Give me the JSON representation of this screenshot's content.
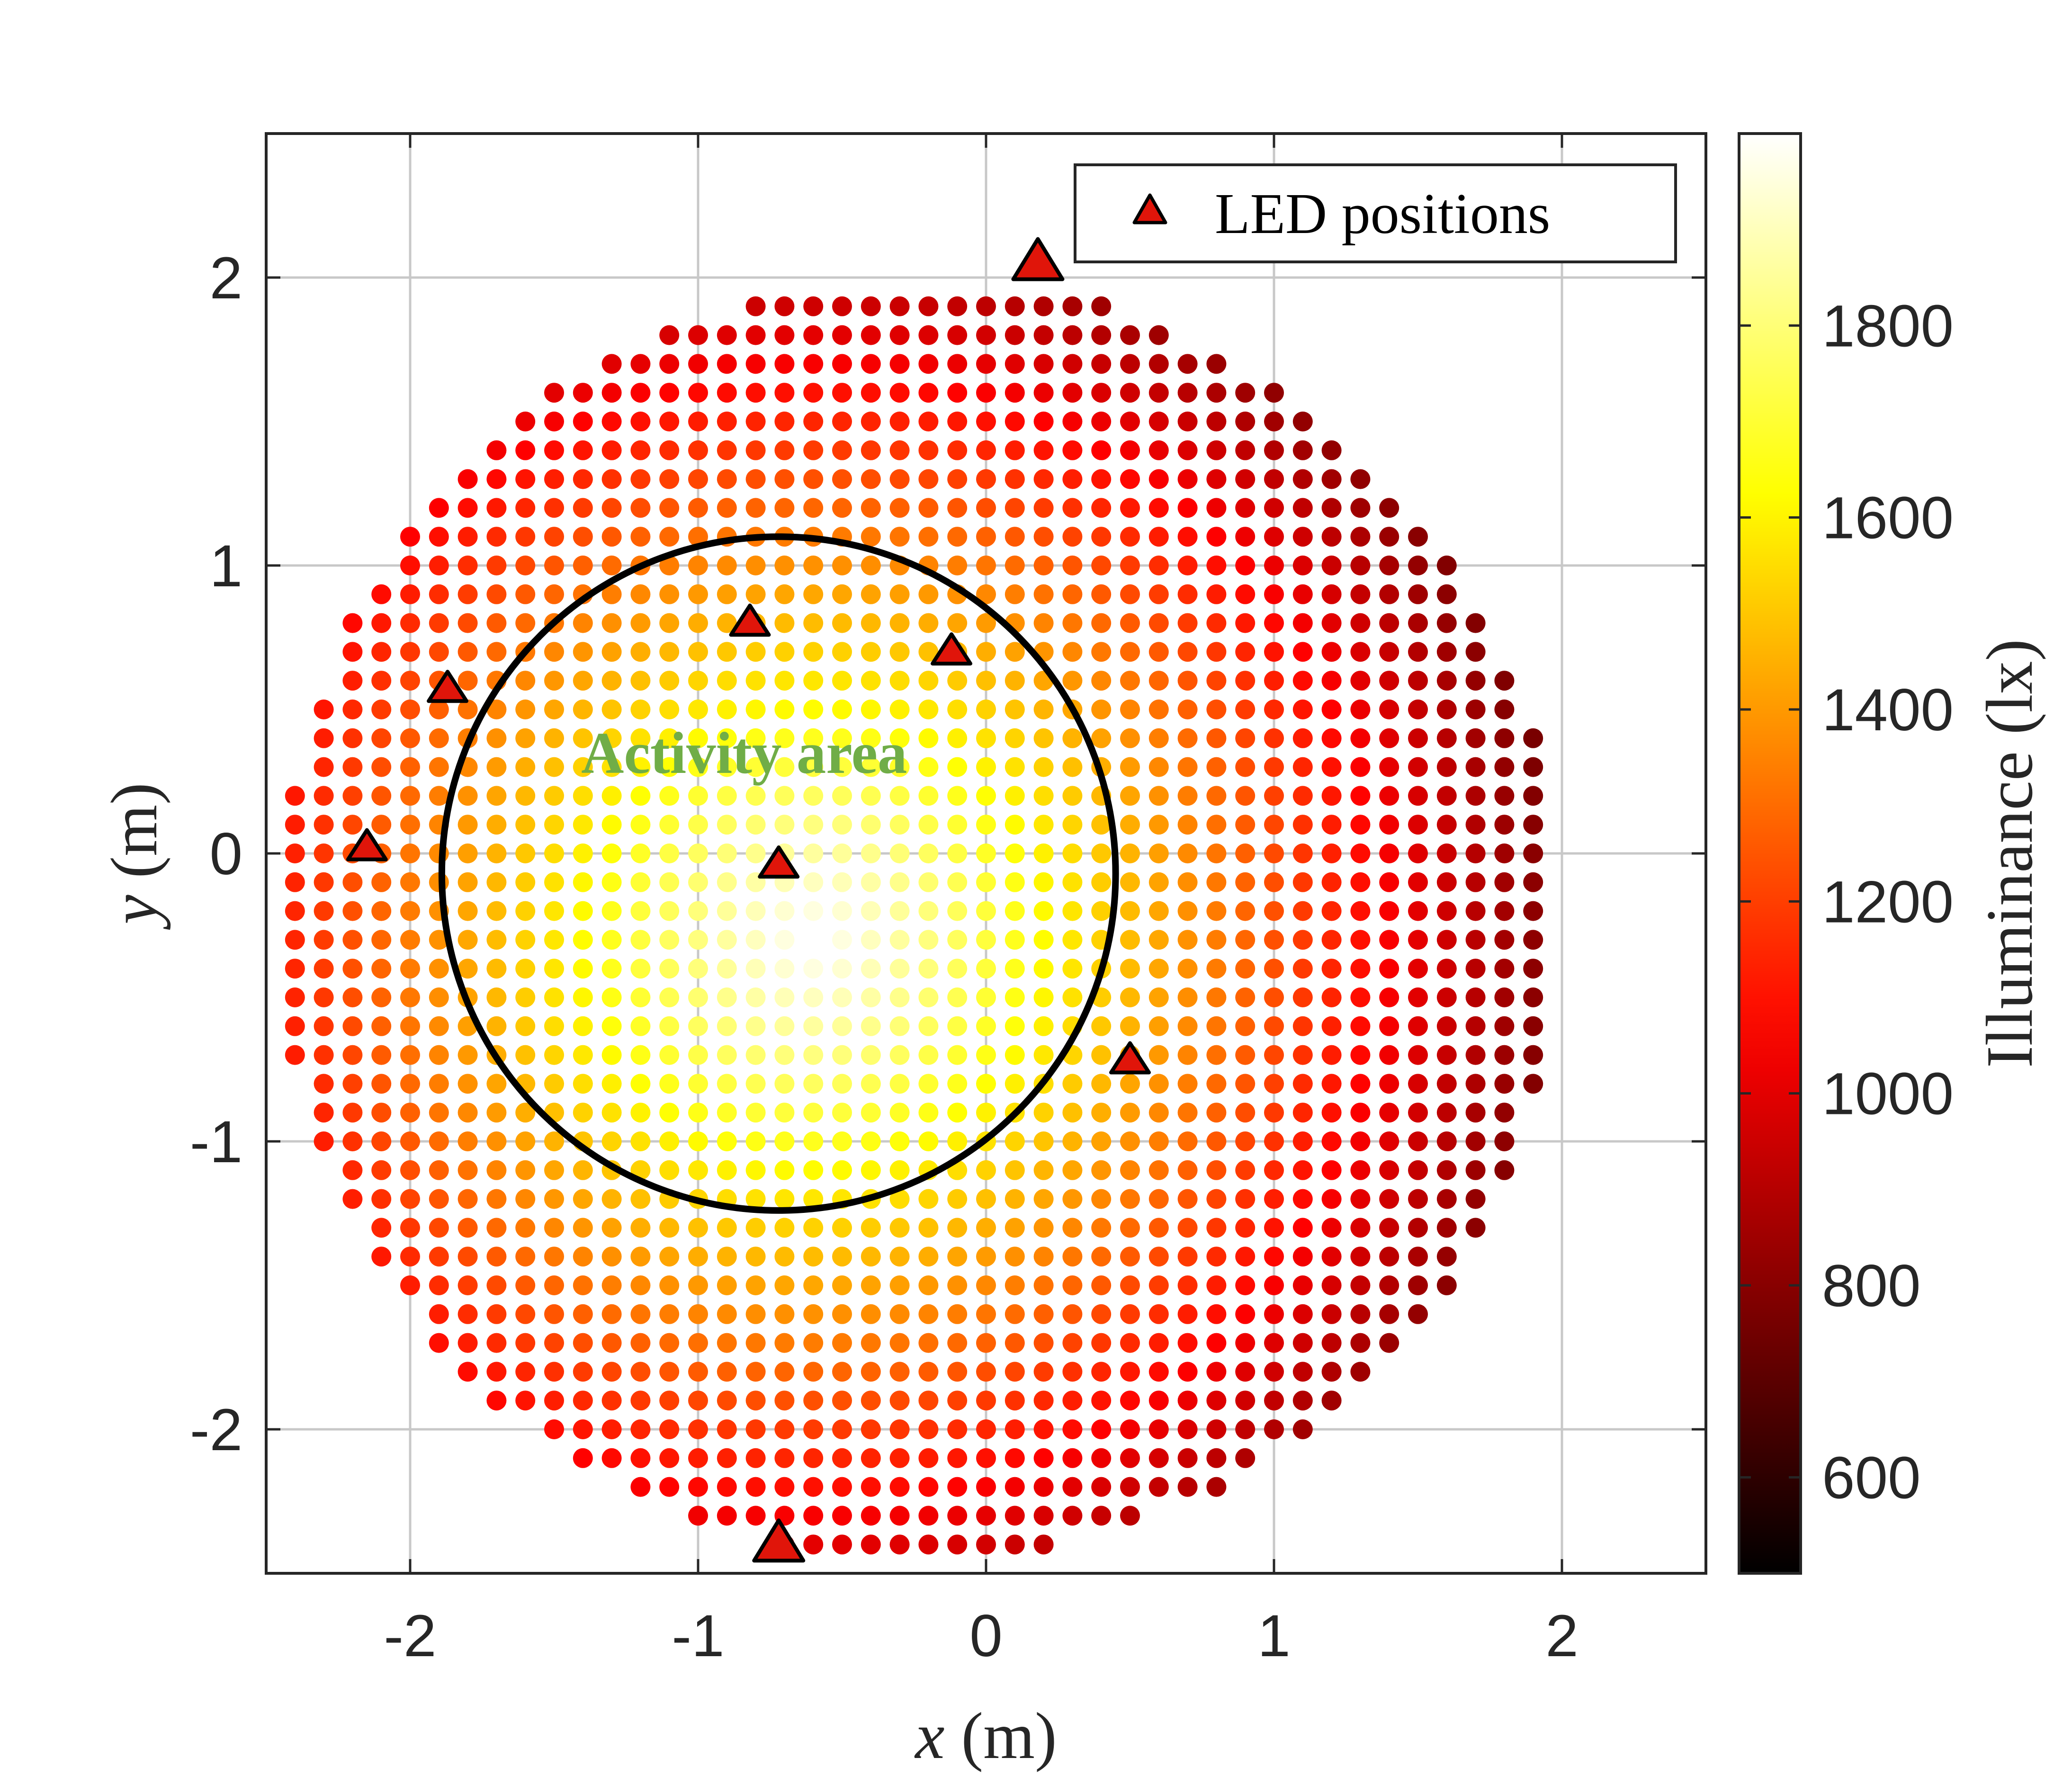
{
  "chart_data": {
    "type": "scatter",
    "title": "",
    "xlabel_var": "x",
    "xlabel_unit": " (m)",
    "ylabel_var": "y",
    "ylabel_unit": " (m)",
    "colorbar_label": "Illuminance (lx)",
    "xlim": [
      -2.5,
      2.5
    ],
    "ylim": [
      -2.5,
      2.5
    ],
    "x_ticks": [
      -2,
      -1,
      0,
      1,
      2
    ],
    "x_tick_labels": [
      "-2",
      "-1",
      "0",
      "1",
      "2"
    ],
    "y_ticks": [
      -2,
      -1,
      0,
      1,
      2
    ],
    "y_tick_labels": [
      "-2",
      "-1",
      "0",
      "1",
      "2"
    ],
    "grid": true,
    "colorbar": {
      "range": [
        500,
        2000
      ],
      "ticks": [
        600,
        800,
        1000,
        1200,
        1400,
        1600,
        1800
      ],
      "tick_labels": [
        "600",
        "800",
        "1000",
        "1200",
        "1400",
        "1600",
        "1800"
      ],
      "colormap": "hot"
    },
    "measurement_grid": {
      "spacing_m": 0.1,
      "boundary_center": [
        -0.23,
        -0.23
      ],
      "boundary_radius_m": 2.23
    },
    "illuminance_field": {
      "peak_position": [
        -0.6,
        -0.3
      ],
      "peak_lx": 2000,
      "falloff_lx_per_m": 475,
      "min_lx": 500
    },
    "led_positions": {
      "x": [
        0.18,
        -0.72,
        -0.82,
        -0.12,
        -2.15,
        -1.87,
        0.5,
        -0.72
      ],
      "y": [
        2.05,
        -2.4,
        0.8,
        0.7,
        0.02,
        0.57,
        -0.72,
        -0.04
      ],
      "sizes": [
        "large",
        "large",
        "small",
        "small",
        "small",
        "small",
        "small",
        "small"
      ]
    },
    "activity_area": {
      "label": "Activity area",
      "center": [
        -0.72,
        -0.07
      ],
      "radius_m": 1.17
    },
    "legend": {
      "position": "top-right",
      "entries": [
        "LED positions"
      ]
    }
  }
}
